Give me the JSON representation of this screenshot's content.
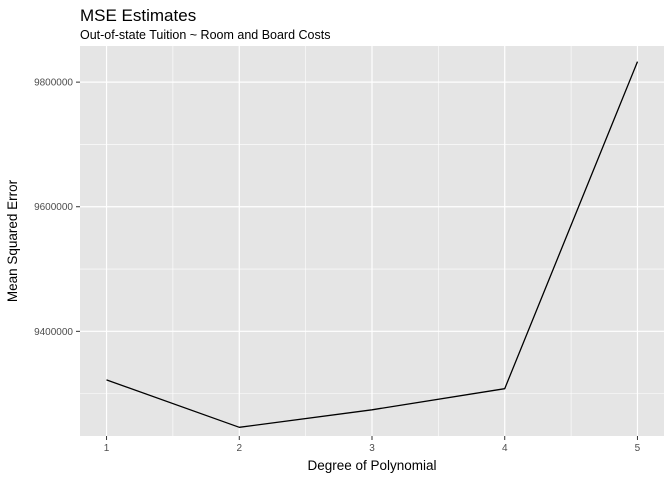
{
  "chart_data": {
    "type": "line",
    "title": "MSE Estimates",
    "subtitle": "Out-of-state Tuition ~ Room and Board Costs",
    "xlabel": "Degree of Polynomial",
    "ylabel": "Mean Squared Error",
    "x": [
      1,
      2,
      3,
      4,
      5
    ],
    "x_ticks": [
      "1",
      "2",
      "3",
      "4",
      "5"
    ],
    "y_ticks": [
      9400000,
      9600000,
      9800000
    ],
    "y_tick_labels": [
      "9400000",
      "9600000",
      "9800000"
    ],
    "xlim": [
      0.8,
      5.2
    ],
    "ylim": [
      9232000,
      9858000
    ],
    "grid": true,
    "series": [
      {
        "values": [
          9322000,
          9246000,
          9274000,
          9308000,
          9833000
        ]
      }
    ],
    "colors": {
      "panel": "#e5e5e5",
      "grid": "#ffffff",
      "line": "#000000",
      "text": "#4d4d4d"
    }
  }
}
